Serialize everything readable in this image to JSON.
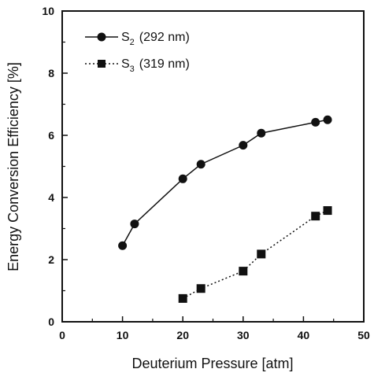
{
  "chart_data": {
    "type": "line",
    "xlabel": "Deuterium Pressure [atm]",
    "ylabel": "Energy Conversion Efficiency [%]",
    "xlim": [
      0,
      50
    ],
    "ylim": [
      0,
      10
    ],
    "xticks": [
      "0",
      "10",
      "20",
      "30",
      "40",
      "50"
    ],
    "yticks": [
      "0",
      "2",
      "4",
      "6",
      "8",
      "10"
    ],
    "grid": false,
    "legend_position": "top-left",
    "series": [
      {
        "name": "S2 (292 nm)",
        "legend_main": "S",
        "legend_sub": "2",
        "legend_rest": "(292 nm)",
        "marker": "circle",
        "line_style": "solid",
        "color": "#111111",
        "x": [
          10,
          12,
          20,
          23,
          30,
          33,
          42,
          44
        ],
        "y": [
          2.45,
          3.15,
          4.6,
          5.07,
          5.68,
          6.07,
          6.42,
          6.5
        ]
      },
      {
        "name": "S3 (319 nm)",
        "legend_main": "S",
        "legend_sub": "3",
        "legend_rest": "(319 nm)",
        "marker": "square",
        "line_style": "dotted",
        "color": "#111111",
        "x": [
          20,
          23,
          30,
          33,
          42,
          44
        ],
        "y": [
          0.75,
          1.07,
          1.63,
          2.18,
          3.4,
          3.58
        ]
      }
    ]
  }
}
